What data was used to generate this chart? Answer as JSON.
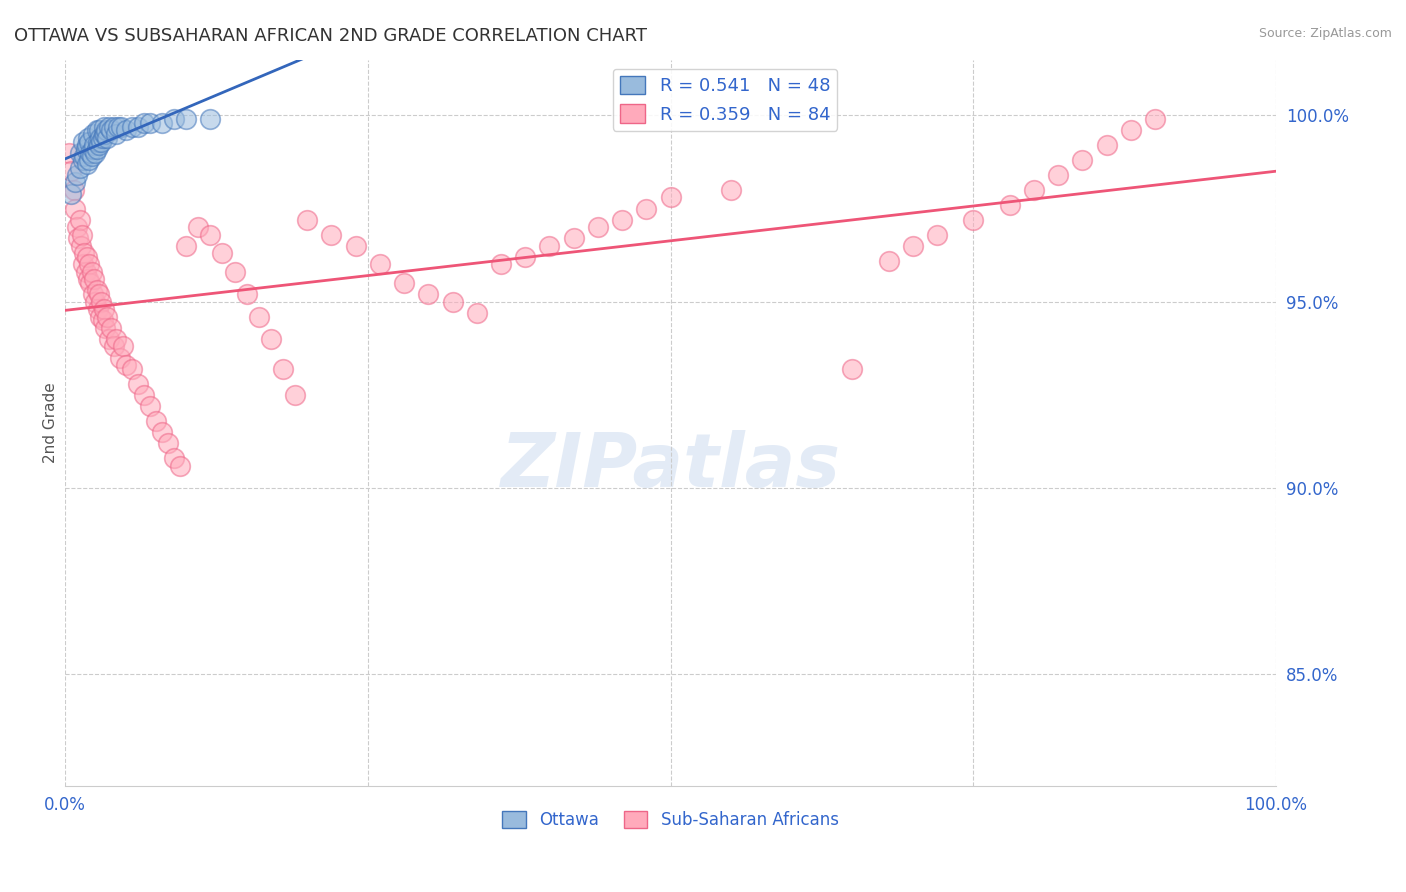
{
  "title": "OTTAWA VS SUBSAHARAN AFRICAN 2ND GRADE CORRELATION CHART",
  "source": "Source: ZipAtlas.com",
  "ylabel": "2nd Grade",
  "xlim": [
    0.0,
    1.0
  ],
  "ylim": [
    0.82,
    1.015
  ],
  "yticks": [
    0.85,
    0.9,
    0.95,
    1.0
  ],
  "ytick_labels": [
    "85.0%",
    "90.0%",
    "95.0%",
    "100.0%"
  ],
  "blue_R": 0.541,
  "blue_N": 48,
  "pink_R": 0.359,
  "pink_N": 84,
  "legend_label_blue": "Ottawa",
  "legend_label_pink": "Sub-Saharan Africans",
  "blue_color": "#99BBDD",
  "pink_color": "#FFAABB",
  "blue_edge_color": "#4477BB",
  "pink_edge_color": "#EE6688",
  "blue_line_color": "#3366BB",
  "pink_line_color": "#EE5577",
  "title_color": "#333333",
  "axis_label_color": "#555555",
  "tick_label_color": "#3366CC",
  "source_color": "#999999",
  "grid_color": "#CCCCCC",
  "watermark_color": "#C8D8EE",
  "blue_x": [
    0.005,
    0.008,
    0.01,
    0.012,
    0.012,
    0.015,
    0.015,
    0.016,
    0.017,
    0.018,
    0.018,
    0.019,
    0.02,
    0.02,
    0.021,
    0.022,
    0.023,
    0.023,
    0.024,
    0.025,
    0.026,
    0.026,
    0.027,
    0.028,
    0.028,
    0.029,
    0.03,
    0.031,
    0.032,
    0.032,
    0.033,
    0.034,
    0.035,
    0.036,
    0.038,
    0.04,
    0.042,
    0.044,
    0.046,
    0.05,
    0.055,
    0.06,
    0.065,
    0.07,
    0.08,
    0.09,
    0.1,
    0.12
  ],
  "blue_y": [
    0.979,
    0.982,
    0.984,
    0.986,
    0.99,
    0.988,
    0.993,
    0.989,
    0.991,
    0.987,
    0.992,
    0.994,
    0.988,
    0.993,
    0.99,
    0.989,
    0.991,
    0.995,
    0.992,
    0.99,
    0.991,
    0.996,
    0.993,
    0.992,
    0.996,
    0.994,
    0.993,
    0.994,
    0.995,
    0.997,
    0.995,
    0.996,
    0.994,
    0.997,
    0.996,
    0.997,
    0.995,
    0.997,
    0.997,
    0.996,
    0.997,
    0.997,
    0.998,
    0.998,
    0.998,
    0.999,
    0.999,
    0.999
  ],
  "pink_x": [
    0.003,
    0.005,
    0.007,
    0.008,
    0.01,
    0.011,
    0.012,
    0.013,
    0.014,
    0.015,
    0.016,
    0.017,
    0.018,
    0.019,
    0.02,
    0.021,
    0.022,
    0.023,
    0.024,
    0.025,
    0.026,
    0.027,
    0.028,
    0.029,
    0.03,
    0.031,
    0.032,
    0.033,
    0.035,
    0.036,
    0.038,
    0.04,
    0.042,
    0.045,
    0.048,
    0.05,
    0.055,
    0.06,
    0.065,
    0.07,
    0.075,
    0.08,
    0.085,
    0.09,
    0.095,
    0.1,
    0.11,
    0.12,
    0.13,
    0.14,
    0.15,
    0.16,
    0.17,
    0.18,
    0.19,
    0.2,
    0.22,
    0.24,
    0.26,
    0.28,
    0.3,
    0.32,
    0.34,
    0.36,
    0.38,
    0.4,
    0.42,
    0.44,
    0.46,
    0.48,
    0.5,
    0.55,
    0.65,
    0.68,
    0.7,
    0.72,
    0.75,
    0.78,
    0.8,
    0.82,
    0.84,
    0.86,
    0.88,
    0.9
  ],
  "pink_y": [
    0.99,
    0.985,
    0.98,
    0.975,
    0.97,
    0.967,
    0.972,
    0.965,
    0.968,
    0.96,
    0.963,
    0.958,
    0.962,
    0.956,
    0.96,
    0.955,
    0.958,
    0.952,
    0.956,
    0.95,
    0.953,
    0.948,
    0.952,
    0.946,
    0.95,
    0.945,
    0.948,
    0.943,
    0.946,
    0.94,
    0.943,
    0.938,
    0.94,
    0.935,
    0.938,
    0.933,
    0.932,
    0.928,
    0.925,
    0.922,
    0.918,
    0.915,
    0.912,
    0.908,
    0.906,
    0.965,
    0.97,
    0.968,
    0.963,
    0.958,
    0.952,
    0.946,
    0.94,
    0.932,
    0.925,
    0.972,
    0.968,
    0.965,
    0.96,
    0.955,
    0.952,
    0.95,
    0.947,
    0.96,
    0.962,
    0.965,
    0.967,
    0.97,
    0.972,
    0.975,
    0.978,
    0.98,
    0.932,
    0.961,
    0.965,
    0.968,
    0.972,
    0.976,
    0.98,
    0.984,
    0.988,
    0.992,
    0.996,
    0.999
  ]
}
